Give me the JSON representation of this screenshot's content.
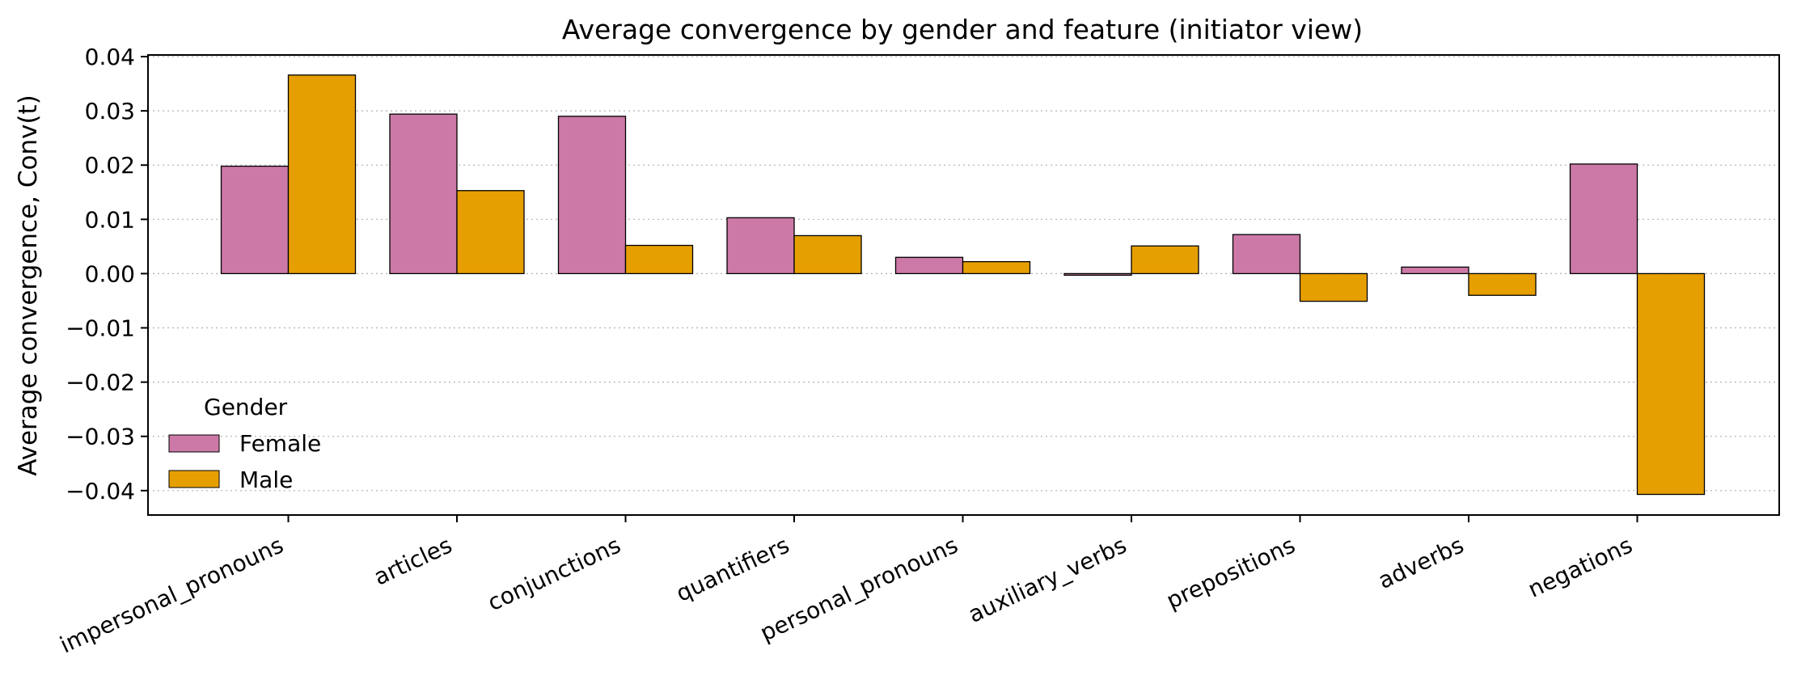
{
  "chart_data": {
    "type": "bar",
    "title": "Average convergence by gender and feature (initiator view)",
    "xlabel": "",
    "ylabel": "Average convergence, Conv(t)",
    "categories": [
      "impersonal_pronouns",
      "articles",
      "conjunctions",
      "quantifiers",
      "personal_pronouns",
      "auxiliary_verbs",
      "prepositions",
      "adverbs",
      "negations"
    ],
    "series": [
      {
        "name": "Female",
        "color": "#CC79A7",
        "values": [
          0.0198,
          0.0294,
          0.029,
          0.0103,
          0.003,
          -0.0003,
          0.0072,
          0.0012,
          0.0202
        ]
      },
      {
        "name": "Male",
        "color": "#E69F00",
        "values": [
          0.0366,
          0.0153,
          0.0052,
          0.007,
          0.0022,
          0.0051,
          -0.0051,
          -0.004,
          -0.0407
        ]
      }
    ],
    "ylim": [
      -0.0445,
      0.0403
    ],
    "yticks": [
      -0.04,
      -0.03,
      -0.02,
      -0.01,
      0.0,
      0.01,
      0.02,
      0.03,
      0.04
    ],
    "ytick_labels": [
      "−0.04",
      "−0.03",
      "−0.02",
      "−0.01",
      "0.00",
      "0.01",
      "0.02",
      "0.03",
      "0.04"
    ],
    "grid": "y-dotted",
    "legend": {
      "title": "Gender",
      "placement": "lower-left",
      "entries": [
        "Female",
        "Male"
      ]
    }
  }
}
